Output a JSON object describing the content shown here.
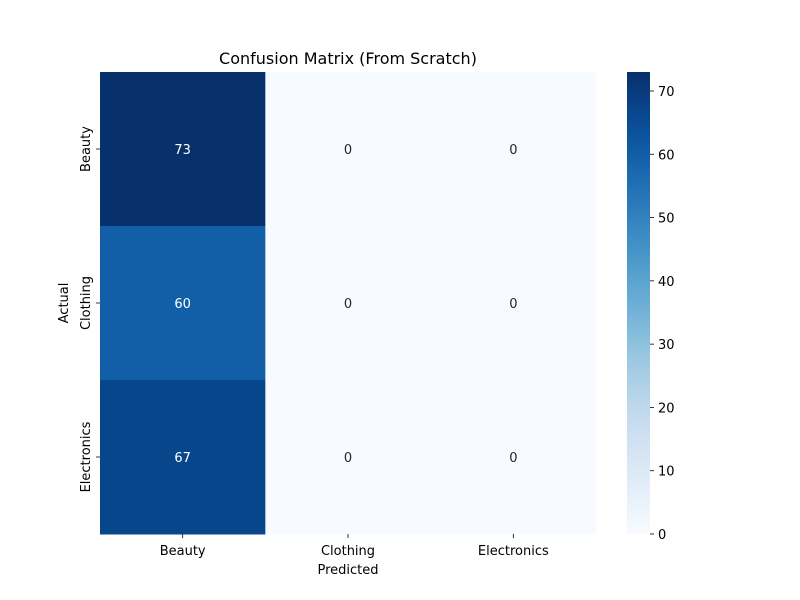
{
  "chart_data": {
    "type": "heatmap",
    "title": "Confusion Matrix (From Scratch)",
    "xlabel": "Predicted",
    "ylabel": "Actual",
    "x_categories": [
      "Beauty",
      "Clothing",
      "Electronics"
    ],
    "y_categories": [
      "Beauty",
      "Clothing",
      "Electronics"
    ],
    "values": [
      [
        73,
        0,
        0
      ],
      [
        60,
        0,
        0
      ],
      [
        67,
        0,
        0
      ]
    ],
    "colormap": "Blues",
    "color_range": [
      0,
      73
    ],
    "colorbar_ticks": [
      0,
      10,
      20,
      30,
      40,
      50,
      60,
      70
    ],
    "annotations": true
  }
}
